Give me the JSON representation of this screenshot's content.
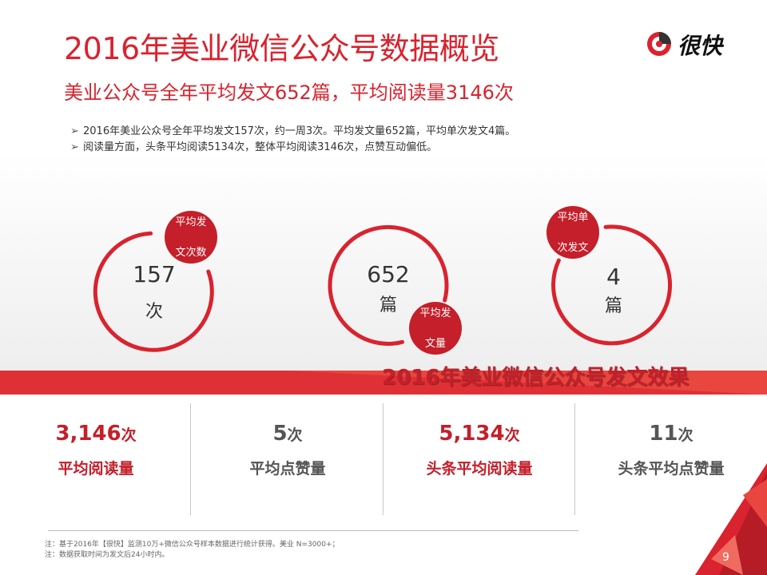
{
  "header": {
    "title": "2016年美业微信公众号数据概览",
    "subtitle": "美业公众号全年平均发文652篇，平均阅读量3146次",
    "logo_text": "很快"
  },
  "bullets": [
    {
      "mark": "➢",
      "text": "2016年美业公众号全年平均发文157次，约一周3次。平均发文量652篇，平均单次发文4篇。"
    },
    {
      "mark": "➢",
      "text": "阅读量方面，头条平均阅读5134次，整体平均阅读3146次，点赞互动偏低。"
    }
  ],
  "rings": [
    {
      "value": "157",
      "unit": "次",
      "badge_line1": "平均发",
      "badge_line2": "文次数"
    },
    {
      "value": "652",
      "unit": "篇",
      "badge_line1": "平均发",
      "badge_line2": "文量"
    },
    {
      "value": "4",
      "unit": "篇",
      "badge_line1": "平均单",
      "badge_line2": "次发文"
    }
  ],
  "section_title": "2016年美业微信公众号发文效果",
  "stats": [
    {
      "number": "3,146",
      "unit": "次",
      "label": "平均阅读量",
      "emphasis": "red"
    },
    {
      "number": "5",
      "unit": "次",
      "label": "平均点赞量",
      "emphasis": "gray"
    },
    {
      "number": "5,134",
      "unit": "次",
      "label": "头条平均阅读量",
      "emphasis": "red"
    },
    {
      "number": "11",
      "unit": "次",
      "label": "头条平均点赞量",
      "emphasis": "gray"
    }
  ],
  "notes": [
    "注：基于2016年【很快】监测10万+微信公众号样本数据进行统计获得。美业 N=3000+；",
    "注：数据获取时间为发文后24小时内。"
  ],
  "page_number": "9",
  "colors": {
    "accent": "#d9232e",
    "dark_red": "#c41f2a",
    "stat_gray": "#555555"
  }
}
